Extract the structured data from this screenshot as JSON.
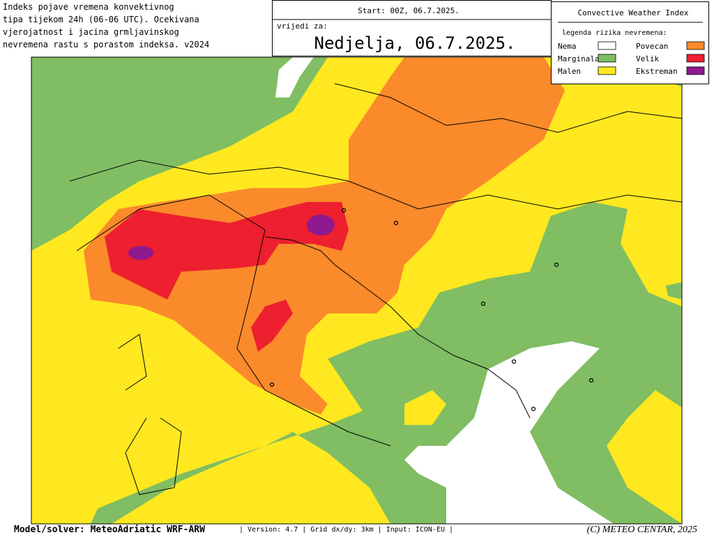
{
  "header": {
    "description": [
      "Indeks pojave vremena konvektivnog",
      "tipa tijekom 24h (06-06 UTC). Ocekivana",
      "vjerojatnost i jacina grmljavinskog",
      "nevremena rastu s porastom indeksa. v2024"
    ],
    "start": "Start: 00Z, 06.7.2025.",
    "valid_label": "vrijedi za:",
    "valid_date": "Nedjelja, 06.7.2025."
  },
  "legend": {
    "title": "Convective Weather Index",
    "subtitle": "legenda rizika nevremena:",
    "items": [
      {
        "label": "Nema",
        "color": "#ffffff"
      },
      {
        "label": "Marginalan",
        "color": "#80bd63"
      },
      {
        "label": "Malen",
        "color": "#ffe81f"
      },
      {
        "label": "Povecan",
        "color": "#fb8a2b"
      },
      {
        "label": "Velik",
        "color": "#ee1f2f"
      },
      {
        "label": "Ekstreman",
        "color": "#8e1a8e"
      }
    ]
  },
  "footer": {
    "model": "Model/solver: MeteoAdriatic WRF-ARW",
    "info": "| Version: 4.7 | Grid dx/dy: 3km | Input: ICON-EU |",
    "copyright": "(C) METEO CENTAR, 2025"
  }
}
